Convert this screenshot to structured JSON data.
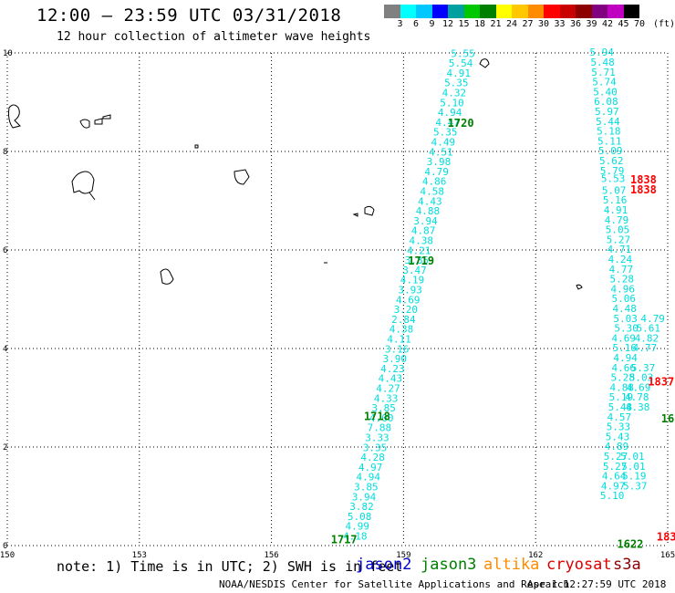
{
  "header": {
    "title": "12:00 – 23:59 UTC 03/31/2018",
    "subtitle": "12 hour collection of altimeter wave heights"
  },
  "colorbar": {
    "colors": [
      "#808080",
      "#00ffff",
      "#00c8ff",
      "#0000ff",
      "#00a0a0",
      "#00c800",
      "#008000",
      "#ffff00",
      "#ffc800",
      "#ff8c00",
      "#ff0000",
      "#c80000",
      "#8c0000",
      "#800080",
      "#c000c0",
      "#000000"
    ],
    "labels": [
      "3",
      "6",
      "9",
      "12",
      "15",
      "18",
      "21",
      "24",
      "27",
      "30",
      "33",
      "36",
      "39",
      "42",
      "45",
      "70"
    ],
    "unit": "(ft)"
  },
  "axes": {
    "x_labels": [
      "150",
      "153",
      "156",
      "159",
      "162",
      "165"
    ],
    "y_labels": [
      "0",
      "2",
      "4",
      "6",
      "8",
      "10"
    ]
  },
  "chart_data": {
    "type": "scatter",
    "xlim": [
      150,
      165
    ],
    "ylim": [
      0,
      10
    ],
    "units": "ft",
    "series": [
      {
        "name": "jason3",
        "color": "#00dddd",
        "points": [
          [
            157.9,
            0.12,
            "4.18"
          ],
          [
            157.95,
            0.32,
            "4.99"
          ],
          [
            158.0,
            0.52,
            "5.08"
          ],
          [
            158.05,
            0.72,
            "3.82"
          ],
          [
            158.1,
            0.92,
            "3.94"
          ],
          [
            158.15,
            1.12,
            "3.85"
          ],
          [
            158.2,
            1.32,
            "4.94"
          ],
          [
            158.25,
            1.52,
            "4.97"
          ],
          [
            158.3,
            1.72,
            "4.28"
          ],
          [
            158.35,
            1.92,
            "3.35"
          ],
          [
            158.4,
            2.12,
            "3.33"
          ],
          [
            158.45,
            2.32,
            "7.88"
          ],
          [
            158.5,
            2.52,
            "4.00"
          ],
          [
            158.55,
            2.72,
            "3.85"
          ],
          [
            158.6,
            2.92,
            "4.33"
          ],
          [
            158.65,
            3.12,
            "4.27"
          ],
          [
            158.7,
            3.32,
            "4.43"
          ],
          [
            158.75,
            3.52,
            "4.23"
          ],
          [
            158.8,
            3.72,
            "3.90"
          ],
          [
            158.85,
            3.92,
            "3.16"
          ],
          [
            158.9,
            4.12,
            "4.11"
          ],
          [
            158.95,
            4.32,
            "4.38"
          ],
          [
            159.0,
            4.52,
            "2.84"
          ],
          [
            159.05,
            4.72,
            "3.20"
          ],
          [
            159.1,
            4.92,
            "4.69"
          ],
          [
            159.15,
            5.12,
            "3.93"
          ],
          [
            159.2,
            5.32,
            "4.19"
          ],
          [
            159.25,
            5.52,
            "3.47"
          ],
          [
            159.3,
            5.72,
            "3.85"
          ],
          [
            159.35,
            5.92,
            "4.21"
          ],
          [
            159.4,
            6.12,
            "4.38"
          ],
          [
            159.45,
            6.32,
            "4.87"
          ],
          [
            159.5,
            6.52,
            "3.94"
          ],
          [
            159.55,
            6.72,
            "4.88"
          ],
          [
            159.6,
            6.92,
            "4.43"
          ],
          [
            159.65,
            7.12,
            "4.58"
          ],
          [
            159.7,
            7.32,
            "4.86"
          ],
          [
            159.75,
            7.52,
            "4.79"
          ],
          [
            159.8,
            7.72,
            "3.98"
          ],
          [
            159.85,
            7.92,
            "4.51"
          ],
          [
            159.9,
            8.12,
            "4.49"
          ],
          [
            159.95,
            8.32,
            "5.35"
          ],
          [
            160.0,
            8.52,
            "4.47"
          ],
          [
            160.05,
            8.72,
            "4.94"
          ],
          [
            160.1,
            8.92,
            "5.10"
          ],
          [
            160.15,
            9.12,
            "4.32"
          ],
          [
            160.2,
            9.32,
            "5.35"
          ],
          [
            160.25,
            9.52,
            "4.91"
          ],
          [
            160.3,
            9.72,
            "5.54"
          ],
          [
            160.35,
            9.92,
            "5.55"
          ]
        ]
      },
      {
        "name": "jason3",
        "color": "#00dddd",
        "points": [
          [
            163.5,
            9.94,
            "5.94"
          ],
          [
            163.52,
            9.74,
            "5.48"
          ],
          [
            163.54,
            9.54,
            "5.71"
          ],
          [
            163.56,
            9.34,
            "5.74"
          ],
          [
            163.58,
            9.14,
            "5.40"
          ],
          [
            163.6,
            8.94,
            "6.08"
          ],
          [
            163.62,
            8.74,
            "5.97"
          ],
          [
            163.64,
            8.54,
            "5.44"
          ],
          [
            163.66,
            8.34,
            "5.18"
          ],
          [
            163.68,
            8.14,
            "5.11"
          ],
          [
            163.7,
            7.94,
            "5.09"
          ],
          [
            163.72,
            7.74,
            "5.62"
          ],
          [
            163.74,
            7.54,
            "5.79"
          ],
          [
            163.76,
            7.38,
            "5.53"
          ],
          [
            163.78,
            7.14,
            "5.07"
          ],
          [
            163.8,
            6.94,
            "5.16"
          ],
          [
            163.82,
            6.74,
            "4.91"
          ],
          [
            163.84,
            6.54,
            "4.79"
          ],
          [
            163.86,
            6.34,
            "5.05"
          ],
          [
            163.88,
            6.14,
            "5.27"
          ],
          [
            163.9,
            5.94,
            "4.71"
          ],
          [
            163.92,
            5.74,
            "4.24"
          ],
          [
            163.94,
            5.54,
            "4.77"
          ],
          [
            163.96,
            5.34,
            "5.28"
          ],
          [
            163.98,
            5.14,
            "4.96"
          ],
          [
            164.0,
            4.94,
            "5.06"
          ],
          [
            164.02,
            4.74,
            "4.48"
          ],
          [
            164.04,
            4.54,
            "5.03"
          ],
          [
            164.06,
            4.34,
            "5.30"
          ],
          [
            164.0,
            4.14,
            "4.69"
          ],
          [
            164.02,
            3.94,
            "5.16"
          ],
          [
            164.04,
            3.74,
            "4.94"
          ],
          [
            164.0,
            3.54,
            "4.66"
          ],
          [
            163.98,
            3.34,
            "5.28"
          ],
          [
            163.96,
            3.14,
            "4.88"
          ],
          [
            163.94,
            2.94,
            "5.19"
          ],
          [
            163.92,
            2.74,
            "5.48"
          ],
          [
            163.9,
            2.54,
            "4.57"
          ],
          [
            163.88,
            2.34,
            "5.33"
          ],
          [
            163.86,
            2.14,
            "5.43"
          ],
          [
            163.84,
            1.94,
            "4.89"
          ],
          [
            163.82,
            1.74,
            "5.27"
          ],
          [
            163.8,
            1.54,
            "5.27"
          ],
          [
            163.78,
            1.34,
            "4.64"
          ],
          [
            163.76,
            1.14,
            "4.97"
          ],
          [
            163.74,
            0.94,
            "5.10"
          ]
        ]
      },
      {
        "name": "jason3",
        "color": "#00dddd",
        "points": [
          [
            164.2,
            1.74,
            "5.01"
          ],
          [
            164.22,
            1.54,
            "5.01"
          ],
          [
            164.24,
            1.34,
            "5.19"
          ],
          [
            164.26,
            1.14,
            "5.37"
          ],
          [
            164.3,
            2.94,
            "4.78"
          ],
          [
            164.32,
            2.74,
            "4.38"
          ],
          [
            164.34,
            3.14,
            "4.69"
          ],
          [
            164.4,
            3.34,
            "5.03"
          ],
          [
            164.44,
            3.54,
            "5.37"
          ],
          [
            164.48,
            3.94,
            "4.77"
          ],
          [
            164.52,
            4.14,
            "4.82"
          ],
          [
            164.56,
            4.34,
            "5.61"
          ],
          [
            164.66,
            4.54,
            "4.79"
          ]
        ]
      }
    ],
    "track_labels": [
      {
        "text": "1717",
        "x": 157.35,
        "y": 0.05,
        "color": "#008000"
      },
      {
        "text": "1718",
        "x": 158.1,
        "y": 2.55,
        "color": "#008000"
      },
      {
        "text": "1719",
        "x": 159.1,
        "y": 5.7,
        "color": "#008000"
      },
      {
        "text": "1720",
        "x": 160.0,
        "y": 8.5,
        "color": "#008000"
      },
      {
        "text": "1622",
        "x": 163.85,
        "y": -0.05,
        "color": "#008000"
      },
      {
        "text": "16",
        "x": 164.85,
        "y": 2.5,
        "color": "#008000"
      },
      {
        "text": "1838",
        "x": 164.15,
        "y": 7.35,
        "color": "#ff0000"
      },
      {
        "text": "1838",
        "x": 164.15,
        "y": 7.15,
        "color": "#ff0000"
      },
      {
        "text": "1837",
        "x": 164.55,
        "y": 3.25,
        "color": "#ff0000"
      },
      {
        "text": "183",
        "x": 164.75,
        "y": 0.1,
        "color": "#ff0000"
      }
    ]
  },
  "note": "note: 1) Time is in UTC; 2) SWH is in feet",
  "missions": [
    {
      "label": "jason2",
      "color": "#0000cc"
    },
    {
      "label": "jason3",
      "color": "#008000"
    },
    {
      "label": "altika",
      "color": "#ff8c00"
    },
    {
      "label": "cryosat",
      "color": "#dd0000"
    },
    {
      "label": "s3a",
      "color": "#8b0000"
    }
  ],
  "footer": {
    "credit": "NOAA/NESDIS Center for Satellite Applications and Research",
    "timestamp": "Apr  1 12:27:59 UTC 2018"
  }
}
